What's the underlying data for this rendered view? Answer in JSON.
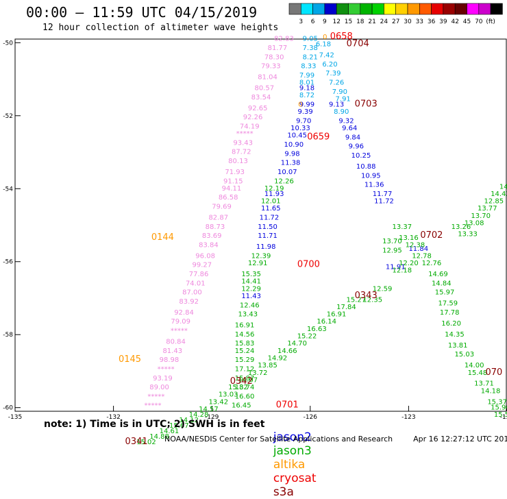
{
  "title": "00:00 – 11:59 UTC 04/15/2019",
  "subtitle": "12 hour collection of altimeter wave heights",
  "colorbar": {
    "unit": "(ft)",
    "colors": [
      "#777777",
      "#00e5ff",
      "#00a6e6",
      "#0000cc",
      "#0f8f0f",
      "#33cc33",
      "#00b400",
      "#00d200",
      "#ffff00",
      "#ffd000",
      "#ff9900",
      "#ff5a00",
      "#e60000",
      "#990000",
      "#660000",
      "#ff00ff",
      "#cc00cc",
      "#000000"
    ],
    "labels": [
      "3",
      "6",
      "9",
      "12",
      "15",
      "18",
      "21",
      "24",
      "27",
      "30",
      "33",
      "36",
      "39",
      "42",
      "45",
      "70"
    ]
  },
  "axes": {
    "lat_ticks": [
      "-50",
      "-52",
      "-54",
      "-56",
      "-58",
      "-60"
    ],
    "lon_ticks": [
      "-135",
      "-132",
      "-129",
      "-126",
      "-123",
      "-120"
    ],
    "lat_range": [
      -60.1,
      -49.9
    ],
    "lon_range": [
      -135,
      -120
    ]
  },
  "legend": {
    "jason2": {
      "label": "jason2",
      "color": "#0000dd"
    },
    "jason3": {
      "label": "jason3",
      "color": "#00aa00"
    },
    "altika": {
      "label": "altika",
      "color": "#ff9900"
    },
    "cryosat": {
      "label": "cryosat",
      "color": "#ee0000"
    },
    "s3a": {
      "label": "s3a",
      "color": "#880000"
    }
  },
  "note": "note: 1) Time is in UTC; 2) SWH is in feet",
  "footer": {
    "org": "NOAA/NESDIS Center for Satellite Applications and Research",
    "timestamp": "Apr 16 12:27:12 UTC 2019"
  },
  "chart_data": {
    "type": "scatter",
    "x_unit": "longitude",
    "y_unit": "latitude",
    "series": [
      {
        "name": "jason2",
        "color": "#0000dd",
        "points": [
          [
            -126.1,
            -51.3,
            "9.18"
          ],
          [
            -126.1,
            -51.75,
            "9.99"
          ],
          [
            -126.15,
            -51.95,
            "9.39"
          ],
          [
            -126.2,
            -52.2,
            "9.70"
          ],
          [
            -126.3,
            -52.4,
            "10.33"
          ],
          [
            -126.4,
            -52.6,
            "10.45"
          ],
          [
            -126.5,
            -52.85,
            "10.90"
          ],
          [
            -126.55,
            -53.1,
            "9.98"
          ],
          [
            -126.6,
            -53.35,
            "11.38"
          ],
          [
            -126.7,
            -53.6,
            "10.07"
          ],
          [
            -127.1,
            -54.2,
            "11.93"
          ],
          [
            -127.2,
            -54.6,
            "11.65"
          ],
          [
            -127.25,
            -54.85,
            "11.72"
          ],
          [
            -127.3,
            -55.1,
            "11.50"
          ],
          [
            -127.3,
            -55.35,
            "11.71"
          ],
          [
            -127.35,
            -55.65,
            "11.98"
          ],
          [
            -127.8,
            -57.0,
            "11.43"
          ],
          [
            -125.2,
            -51.75,
            "9.13"
          ],
          [
            -124.9,
            -52.2,
            "9.32"
          ],
          [
            -124.8,
            -52.4,
            "9.64"
          ],
          [
            -124.7,
            -52.65,
            "9.84"
          ],
          [
            -124.6,
            -52.9,
            "9.96"
          ],
          [
            -124.45,
            -53.15,
            "10.25"
          ],
          [
            -124.3,
            -53.45,
            "10.88"
          ],
          [
            -124.15,
            -53.7,
            "10.95"
          ],
          [
            -124.05,
            -53.95,
            "11.36"
          ],
          [
            -123.8,
            -54.2,
            "11.77"
          ],
          [
            -123.75,
            -54.4,
            "11.72"
          ],
          [
            -122.7,
            -55.7,
            "11.84"
          ],
          [
            -123.4,
            -56.2,
            "11.91"
          ]
        ]
      },
      {
        "name": "jason3",
        "color": "#00aa00",
        "points": [
          [
            -126.8,
            -53.85,
            "12.26"
          ],
          [
            -127.1,
            -54.05,
            "12.19"
          ],
          [
            -127.2,
            -54.4,
            "12.01"
          ],
          [
            -127.5,
            -55.9,
            "12.39"
          ],
          [
            -127.6,
            -56.1,
            "12.91"
          ],
          [
            -127.8,
            -56.4,
            "15.35"
          ],
          [
            -127.8,
            -56.6,
            "14.41"
          ],
          [
            -127.8,
            -56.8,
            "12.29"
          ],
          [
            -127.85,
            -57.25,
            "12.46"
          ],
          [
            -127.9,
            -57.5,
            "13.43"
          ],
          [
            -128.0,
            -57.8,
            "16.91"
          ],
          [
            -128.0,
            -58.05,
            "14.56"
          ],
          [
            -128.0,
            -58.3,
            "15.83"
          ],
          [
            -128.0,
            -58.5,
            "15.24"
          ],
          [
            -128.0,
            -58.75,
            "15.29"
          ],
          [
            -128.0,
            -59.0,
            "17.12"
          ],
          [
            -128.0,
            -59.25,
            "15.87"
          ],
          [
            -128.0,
            -59.5,
            "18.74"
          ],
          [
            -128.0,
            -59.75,
            "16.60"
          ],
          [
            -128.1,
            -60.0,
            "16.45"
          ],
          [
            -123.5,
            -55.5,
            "13.70"
          ],
          [
            -123.5,
            -55.75,
            "12.95"
          ],
          [
            -123.2,
            -55.1,
            "13.37"
          ],
          [
            -123.0,
            -55.4,
            "13.16"
          ],
          [
            -122.8,
            -55.6,
            "12.38"
          ],
          [
            -123.0,
            -56.1,
            "12.20"
          ],
          [
            -123.2,
            -56.3,
            "12.18"
          ],
          [
            -122.6,
            -55.9,
            "12.78"
          ],
          [
            -122.3,
            -56.1,
            "12.76"
          ],
          [
            -122.1,
            -56.4,
            "14.69"
          ],
          [
            -122.0,
            -56.65,
            "14.84"
          ],
          [
            -121.9,
            -56.9,
            "15.97"
          ],
          [
            -121.8,
            -57.2,
            "17.59"
          ],
          [
            -121.75,
            -57.45,
            "17.78"
          ],
          [
            -121.7,
            -57.75,
            "16.20"
          ],
          [
            -121.6,
            -58.05,
            "14.35"
          ],
          [
            -121.5,
            -58.35,
            "13.81"
          ],
          [
            -121.3,
            -58.6,
            "15.03"
          ],
          [
            -121.0,
            -58.9,
            "14.00"
          ],
          [
            -120.9,
            -59.1,
            "15.48"
          ],
          [
            -120.7,
            -59.4,
            "13.71"
          ],
          [
            -120.5,
            -59.6,
            "14.18"
          ],
          [
            -120.3,
            -59.9,
            "15.37"
          ],
          [
            -120.2,
            -60.05,
            "15.96"
          ],
          [
            -120.1,
            -60.25,
            "15.55"
          ],
          [
            -121.4,
            -55.1,
            "13.26"
          ],
          [
            -121.2,
            -55.3,
            "13.33"
          ],
          [
            -121.0,
            -55.0,
            "13.08"
          ],
          [
            -120.8,
            -54.8,
            "13.70"
          ],
          [
            -120.6,
            -54.6,
            "13.77"
          ],
          [
            -120.4,
            -54.4,
            "12.85"
          ],
          [
            -120.2,
            -54.2,
            "14.42"
          ],
          [
            -120.0,
            -54.0,
            "14.5"
          ],
          [
            -123.8,
            -56.8,
            "12.59"
          ],
          [
            -124.1,
            -57.1,
            "12.35"
          ],
          [
            -124.6,
            -57.1,
            "15.27"
          ],
          [
            -124.9,
            -57.3,
            "17.84"
          ],
          [
            -125.2,
            -57.5,
            "16.91"
          ],
          [
            -125.5,
            -57.7,
            "16.14"
          ],
          [
            -125.8,
            -57.9,
            "16.63"
          ],
          [
            -126.1,
            -58.1,
            "15.22"
          ],
          [
            -126.4,
            -58.3,
            "14.70"
          ],
          [
            -126.7,
            -58.5,
            "14.66"
          ],
          [
            -127.0,
            -58.7,
            "14.92"
          ],
          [
            -127.3,
            -58.9,
            "13.85"
          ],
          [
            -127.6,
            -59.1,
            "13.72"
          ],
          [
            -127.9,
            -59.3,
            "14.07"
          ],
          [
            -128.2,
            -59.5,
            "15.32"
          ],
          [
            -128.5,
            -59.7,
            "13.03"
          ],
          [
            -128.8,
            -59.9,
            "13.42"
          ],
          [
            -129.1,
            -60.1,
            "14.57"
          ],
          [
            -129.4,
            -60.25,
            "14.28"
          ],
          [
            -129.7,
            -60.4,
            "14.12"
          ],
          [
            -130.0,
            -60.55,
            "15.67"
          ],
          [
            -130.3,
            -60.7,
            "14.61"
          ],
          [
            -130.6,
            -60.85,
            "14.88"
          ],
          [
            -131.0,
            -61.0,
            "15.02"
          ]
        ]
      },
      {
        "name": "altika",
        "color": "#ff9900",
        "points": [
          [
            -126.3,
            -51.75,
            "0"
          ],
          [
            -125.55,
            -49.9,
            "0"
          ],
          [
            -130.5,
            -55.4,
            "0144"
          ],
          [
            -131.5,
            -58.75,
            "0145"
          ]
        ]
      },
      {
        "name": "cryosat",
        "color": "#ee0000",
        "points": [
          [
            -125.75,
            -52.65,
            "0659"
          ],
          [
            -126.05,
            -56.15,
            "0700"
          ],
          [
            -126.7,
            -60.0,
            "0701"
          ],
          [
            -125.05,
            -49.9,
            "0658"
          ]
        ]
      },
      {
        "name": "s3a",
        "color": "#880000",
        "points": [
          [
            -124.55,
            -50.1,
            "0704"
          ],
          [
            -124.3,
            -51.75,
            "0703"
          ],
          [
            -122.3,
            -55.35,
            "0702"
          ],
          [
            -120.4,
            -59.1,
            "070"
          ],
          [
            -124.3,
            -57.0,
            "0343"
          ],
          [
            -128.1,
            -59.35,
            "0342"
          ],
          [
            -131.3,
            -61.0,
            "0341"
          ]
        ]
      },
      {
        "name": "",
        "color": "#ee88dd",
        "points": [
          [
            -126.8,
            -49.95,
            "82.83"
          ],
          [
            -127.0,
            -50.2,
            "81.77"
          ],
          [
            -127.1,
            -50.45,
            "78.30"
          ],
          [
            -127.2,
            -50.7,
            "79.33"
          ],
          [
            -127.3,
            -51.0,
            "81.04"
          ],
          [
            -127.4,
            -51.3,
            "80.57"
          ],
          [
            -127.5,
            -51.55,
            "83.54"
          ],
          [
            -127.6,
            -51.85,
            "92.65"
          ],
          [
            -127.75,
            -52.1,
            "92.26"
          ],
          [
            -127.85,
            -52.35,
            "74.19"
          ],
          [
            -128.0,
            -52.55,
            "*****"
          ],
          [
            -128.05,
            -52.8,
            "93.43"
          ],
          [
            -128.1,
            -53.05,
            "87.72"
          ],
          [
            -128.2,
            -53.3,
            "80.13"
          ],
          [
            -128.3,
            -53.6,
            "71.93"
          ],
          [
            -128.35,
            -53.85,
            "91.15"
          ],
          [
            -128.4,
            -54.05,
            "94.11"
          ],
          [
            -128.5,
            -54.3,
            "86.58"
          ],
          [
            -128.7,
            -54.55,
            "79.69"
          ],
          [
            -128.8,
            -54.85,
            "82.87"
          ],
          [
            -128.9,
            -55.1,
            "88.73"
          ],
          [
            -129.0,
            -55.35,
            "83.69"
          ],
          [
            -129.1,
            -55.6,
            "83.84"
          ],
          [
            -129.2,
            -55.9,
            "96.08"
          ],
          [
            -129.3,
            -56.15,
            "99.27"
          ],
          [
            -129.4,
            -56.4,
            "77.86"
          ],
          [
            -129.5,
            -56.65,
            "74.01"
          ],
          [
            -129.6,
            -56.9,
            "87.00"
          ],
          [
            -129.7,
            -57.15,
            "83.92"
          ],
          [
            -129.85,
            -57.45,
            "92.84"
          ],
          [
            -129.95,
            -57.7,
            "79.09"
          ],
          [
            -130.0,
            -57.95,
            "*****"
          ],
          [
            -130.1,
            -58.25,
            "80.84"
          ],
          [
            -130.2,
            -58.5,
            "81.43"
          ],
          [
            -130.3,
            -58.75,
            "98.98"
          ],
          [
            -130.4,
            -59.0,
            "*****"
          ],
          [
            -130.5,
            -59.25,
            "93.19"
          ],
          [
            -130.6,
            -59.5,
            "89.00"
          ],
          [
            -130.7,
            -59.75,
            "*****"
          ],
          [
            -130.8,
            -60.0,
            "*****"
          ]
        ]
      },
      {
        "name": "",
        "color": "#00a6e6",
        "points": [
          [
            -126.0,
            -50.2,
            "7.38"
          ],
          [
            -126.0,
            -50.45,
            "8.21"
          ],
          [
            -126.05,
            -50.7,
            "8.33"
          ],
          [
            -126.1,
            -50.95,
            "7.99"
          ],
          [
            -126.1,
            -51.15,
            "8.01"
          ],
          [
            -126.1,
            -51.5,
            "8.72"
          ],
          [
            -125.6,
            -50.1,
            "6.18"
          ],
          [
            -125.5,
            -50.4,
            "7.42"
          ],
          [
            -125.4,
            -50.65,
            "6.20"
          ],
          [
            -125.3,
            -50.9,
            "7.39"
          ],
          [
            -125.2,
            -51.15,
            "7.26"
          ],
          [
            -125.1,
            -51.4,
            "7.90"
          ],
          [
            -125.0,
            -51.6,
            "7.91"
          ],
          [
            -125.05,
            -51.95,
            "8.90"
          ],
          [
            -126.0,
            -49.95,
            "9.05"
          ]
        ]
      }
    ]
  }
}
